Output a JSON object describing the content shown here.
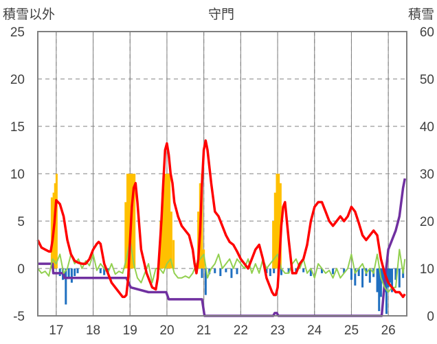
{
  "chart_data": {
    "type": "bar+line",
    "title": "守門",
    "left_axis_title": "積雪以外",
    "right_axis_title": "積雪",
    "ylim_left": [
      -5,
      25
    ],
    "ylim_right": [
      0,
      60
    ],
    "yticks_left": [
      "25",
      "20",
      "15",
      "10",
      "5",
      "0",
      "-5"
    ],
    "yticks_right": [
      "60",
      "50",
      "40",
      "30",
      "20",
      "10",
      "0"
    ],
    "xlim": [
      16.5,
      26.5
    ],
    "xticks": [
      "17",
      "18",
      "19",
      "20",
      "21",
      "22",
      "23",
      "24",
      "25",
      "26"
    ],
    "grid": true,
    "colors": {
      "temperature": "#ff0000",
      "precipitation": "#ffc000",
      "snow_change": "#1f6fc0",
      "wind": "#92d050",
      "snow_depth": "#7030a0",
      "frame": "#7f7f7f",
      "grid": "#7f7f7f"
    },
    "series": [
      {
        "id": "precipitation",
        "axis": "left",
        "kind": "bar",
        "x": [
          16.88,
          16.93,
          16.97,
          17.01,
          18.88,
          18.93,
          18.98,
          19.02,
          19.07,
          19.12,
          19.83,
          19.88,
          19.93,
          19.98,
          20.02,
          20.07,
          20.12,
          20.18,
          20.85,
          20.9,
          20.95,
          21.0,
          22.88,
          22.93,
          22.98,
          23.03,
          23.08
        ],
        "values": [
          7.5,
          8,
          9,
          10,
          7,
          10,
          10,
          10,
          10,
          10,
          5,
          8,
          10,
          10,
          10,
          10,
          6,
          3,
          6,
          9,
          10,
          2,
          5,
          8,
          10,
          10,
          9
        ]
      },
      {
        "id": "snow_change",
        "axis": "left",
        "kind": "bar",
        "x": [
          17.1,
          17.18,
          17.26,
          17.34,
          17.42,
          17.5,
          17.58,
          18.2,
          18.3,
          18.4,
          20.95,
          21.05,
          21.15,
          21.3,
          21.45,
          21.6,
          21.75,
          21.9,
          22.7,
          22.8,
          22.9,
          23.1,
          23.3,
          23.5,
          23.7,
          23.9,
          24.2,
          24.5,
          24.8,
          25.0,
          25.1,
          25.2,
          25.3,
          25.4,
          25.5,
          25.6,
          25.7,
          25.75,
          25.8,
          25.85,
          25.9,
          25.95,
          26.0,
          26.05,
          26.1,
          26.2,
          26.3,
          26.4
        ],
        "values": [
          -0.8,
          -1.2,
          -3.8,
          -1.0,
          -1.5,
          -0.8,
          -0.5,
          -0.5,
          -0.7,
          -0.5,
          -1.0,
          -2.8,
          -0.6,
          -0.5,
          -0.8,
          -0.4,
          -1.0,
          -0.6,
          -0.5,
          -0.8,
          -0.5,
          -0.7,
          -0.5,
          -0.6,
          -0.4,
          -0.8,
          -0.5,
          -0.6,
          -0.5,
          -1.2,
          -1.8,
          -0.8,
          -2.0,
          -0.8,
          -1.5,
          -0.9,
          -2.5,
          -4.5,
          -3.0,
          -1.5,
          -2.5,
          -4.8,
          -2.0,
          -1.5,
          -2.5,
          -1.2,
          -2.0,
          -1.0
        ]
      },
      {
        "id": "temperature",
        "axis": "left",
        "kind": "line",
        "x": [
          16.5,
          16.6,
          16.7,
          16.8,
          16.85,
          16.9,
          16.95,
          17.0,
          17.1,
          17.2,
          17.3,
          17.4,
          17.5,
          17.6,
          17.7,
          17.8,
          17.9,
          18.0,
          18.1,
          18.15,
          18.2,
          18.3,
          18.5,
          18.7,
          18.8,
          18.85,
          18.9,
          18.95,
          19.0,
          19.05,
          19.1,
          19.15,
          19.2,
          19.3,
          19.45,
          19.6,
          19.7,
          19.75,
          19.8,
          19.85,
          19.9,
          19.95,
          20.0,
          20.05,
          20.1,
          20.15,
          20.2,
          20.3,
          20.4,
          20.5,
          20.6,
          20.7,
          20.75,
          20.8,
          20.85,
          20.9,
          20.95,
          21.0,
          21.05,
          21.1,
          21.2,
          21.3,
          21.4,
          21.5,
          21.6,
          21.7,
          21.8,
          21.9,
          22.0,
          22.1,
          22.2,
          22.3,
          22.4,
          22.5,
          22.6,
          22.7,
          22.8,
          22.85,
          22.9,
          22.95,
          23.0,
          23.05,
          23.1,
          23.15,
          23.2,
          23.3,
          23.4,
          23.5,
          23.6,
          23.7,
          23.8,
          23.9,
          24.0,
          24.1,
          24.2,
          24.3,
          24.4,
          24.5,
          24.6,
          24.7,
          24.8,
          24.9,
          25.0,
          25.1,
          25.2,
          25.3,
          25.4,
          25.5,
          25.6,
          25.7,
          25.8,
          25.9,
          26.0,
          26.1,
          26.2,
          26.3,
          26.4,
          26.45
        ],
        "values": [
          3.0,
          2.2,
          2.0,
          1.8,
          1.8,
          3.0,
          4.8,
          7.2,
          6.8,
          5.5,
          3.0,
          1.5,
          0.8,
          0.6,
          0.5,
          0.5,
          1.0,
          2.0,
          2.6,
          2.8,
          2.6,
          0.5,
          -1.5,
          -2.5,
          -3.0,
          -3.0,
          -2.8,
          -1.0,
          3.0,
          6.5,
          8.5,
          9.0,
          7.0,
          2.0,
          -0.5,
          -2.0,
          -2.2,
          -1.0,
          2.0,
          5.0,
          9.0,
          12.5,
          13.2,
          12.0,
          10.0,
          9.0,
          7.0,
          5.5,
          4.5,
          4.0,
          3.5,
          2.0,
          0.5,
          -0.5,
          1.0,
          4.0,
          9.0,
          12.5,
          13.5,
          12.5,
          9.0,
          6.0,
          5.5,
          4.5,
          3.5,
          2.8,
          2.5,
          1.8,
          1.0,
          0.5,
          0.0,
          1.0,
          2.0,
          2.5,
          1.0,
          -1.0,
          -2.0,
          -2.5,
          -2.8,
          -2.8,
          -2.0,
          1.0,
          4.5,
          6.5,
          7.0,
          3.0,
          -0.5,
          -0.5,
          0.5,
          1.0,
          2.5,
          5.0,
          6.5,
          7.0,
          7.0,
          6.0,
          5.0,
          4.5,
          5.0,
          5.5,
          5.0,
          5.5,
          6.5,
          6.0,
          4.8,
          3.5,
          3.0,
          3.5,
          4.0,
          3.5,
          1.0,
          -0.5,
          -1.5,
          -2.0,
          -2.5,
          -2.5,
          -3.0,
          -2.7
        ],
        "marker": "none"
      },
      {
        "id": "wind",
        "axis": "left",
        "kind": "line",
        "x": [
          16.5,
          16.6,
          16.7,
          16.8,
          16.9,
          17.0,
          17.1,
          17.2,
          17.3,
          17.4,
          17.5,
          17.6,
          17.7,
          17.8,
          17.9,
          18.0,
          18.1,
          18.2,
          18.3,
          18.4,
          18.5,
          18.6,
          18.7,
          18.8,
          18.9,
          19.0,
          19.1,
          19.2,
          19.3,
          19.4,
          19.5,
          19.6,
          19.7,
          19.8,
          19.9,
          20.0,
          20.1,
          20.2,
          20.3,
          20.4,
          20.5,
          20.6,
          20.7,
          20.8,
          20.9,
          21.0,
          21.1,
          21.2,
          21.3,
          21.4,
          21.5,
          21.6,
          21.7,
          21.8,
          21.9,
          22.0,
          22.1,
          22.2,
          22.3,
          22.4,
          22.5,
          22.6,
          22.7,
          22.8,
          22.9,
          23.0,
          23.1,
          23.2,
          23.3,
          23.4,
          23.5,
          23.6,
          23.7,
          23.8,
          23.9,
          24.0,
          24.1,
          24.2,
          24.3,
          24.4,
          24.5,
          24.6,
          24.7,
          24.8,
          24.9,
          25.0,
          25.1,
          25.2,
          25.3,
          25.4,
          25.5,
          25.6,
          25.7,
          25.8,
          25.9,
          26.0,
          26.1,
          26.2,
          26.3,
          26.4,
          26.45
        ],
        "values": [
          0.0,
          -0.5,
          -0.3,
          -0.8,
          1.0,
          0.5,
          1.5,
          -0.5,
          0.0,
          1.5,
          0.5,
          1.0,
          0.0,
          0.8,
          0.3,
          1.5,
          -0.2,
          0.5,
          0.0,
          -0.5,
          0.5,
          -0.6,
          -0.3,
          -0.5,
          1.0,
          3.0,
          0.5,
          -1.0,
          -1.5,
          -0.5,
          0.5,
          -1.5,
          0.0,
          0.0,
          -0.5,
          0.5,
          1.0,
          -0.5,
          -1.0,
          -1.0,
          -0.8,
          -1.0,
          -0.5,
          0.5,
          1.0,
          1.5,
          -1.0,
          0.0,
          0.5,
          1.5,
          0.0,
          0.5,
          1.0,
          0.0,
          1.0,
          0.5,
          0.0,
          1.0,
          -0.5,
          0.5,
          -0.5,
          1.0,
          0.0,
          0.5,
          1.0,
          1.5,
          0.0,
          -0.5,
          -0.5,
          0.5,
          1.0,
          0.0,
          1.0,
          -0.5,
          0.0,
          -1.0,
          0.5,
          0.0,
          -0.5,
          -0.2,
          -1.0,
          0.0,
          -1.0,
          -0.5,
          0.0,
          1.5,
          -0.5,
          0.0,
          0.5,
          -0.5,
          0.0,
          -0.5,
          1.5,
          -1.0,
          -2.0,
          -2.5,
          -2.0,
          -2.0,
          2.0,
          -0.5,
          1.0
        ],
        "marker": "none"
      },
      {
        "id": "snow_depth",
        "axis": "right",
        "kind": "line",
        "x": [
          16.5,
          16.9,
          16.92,
          17.2,
          17.22,
          17.3,
          17.32,
          17.6,
          17.62,
          18.9,
          19.02,
          19.5,
          19.52,
          19.98,
          20.05,
          20.95,
          21.02,
          22.88,
          22.92,
          22.98,
          23.02,
          25.82,
          25.9,
          26.0,
          26.1,
          26.2,
          26.3,
          26.4,
          26.45
        ],
        "values": [
          11.0,
          11.0,
          9.0,
          9.0,
          8.0,
          8.0,
          8.0,
          8.0,
          8.0,
          8.0,
          6.0,
          5.0,
          5.0,
          5.0,
          3.5,
          3.5,
          0.0,
          0.0,
          0.6,
          0.6,
          0.0,
          0.0,
          7.0,
          14.0,
          16.0,
          18.0,
          21.0,
          27.0,
          29.0
        ],
        "marker": "none"
      }
    ]
  }
}
